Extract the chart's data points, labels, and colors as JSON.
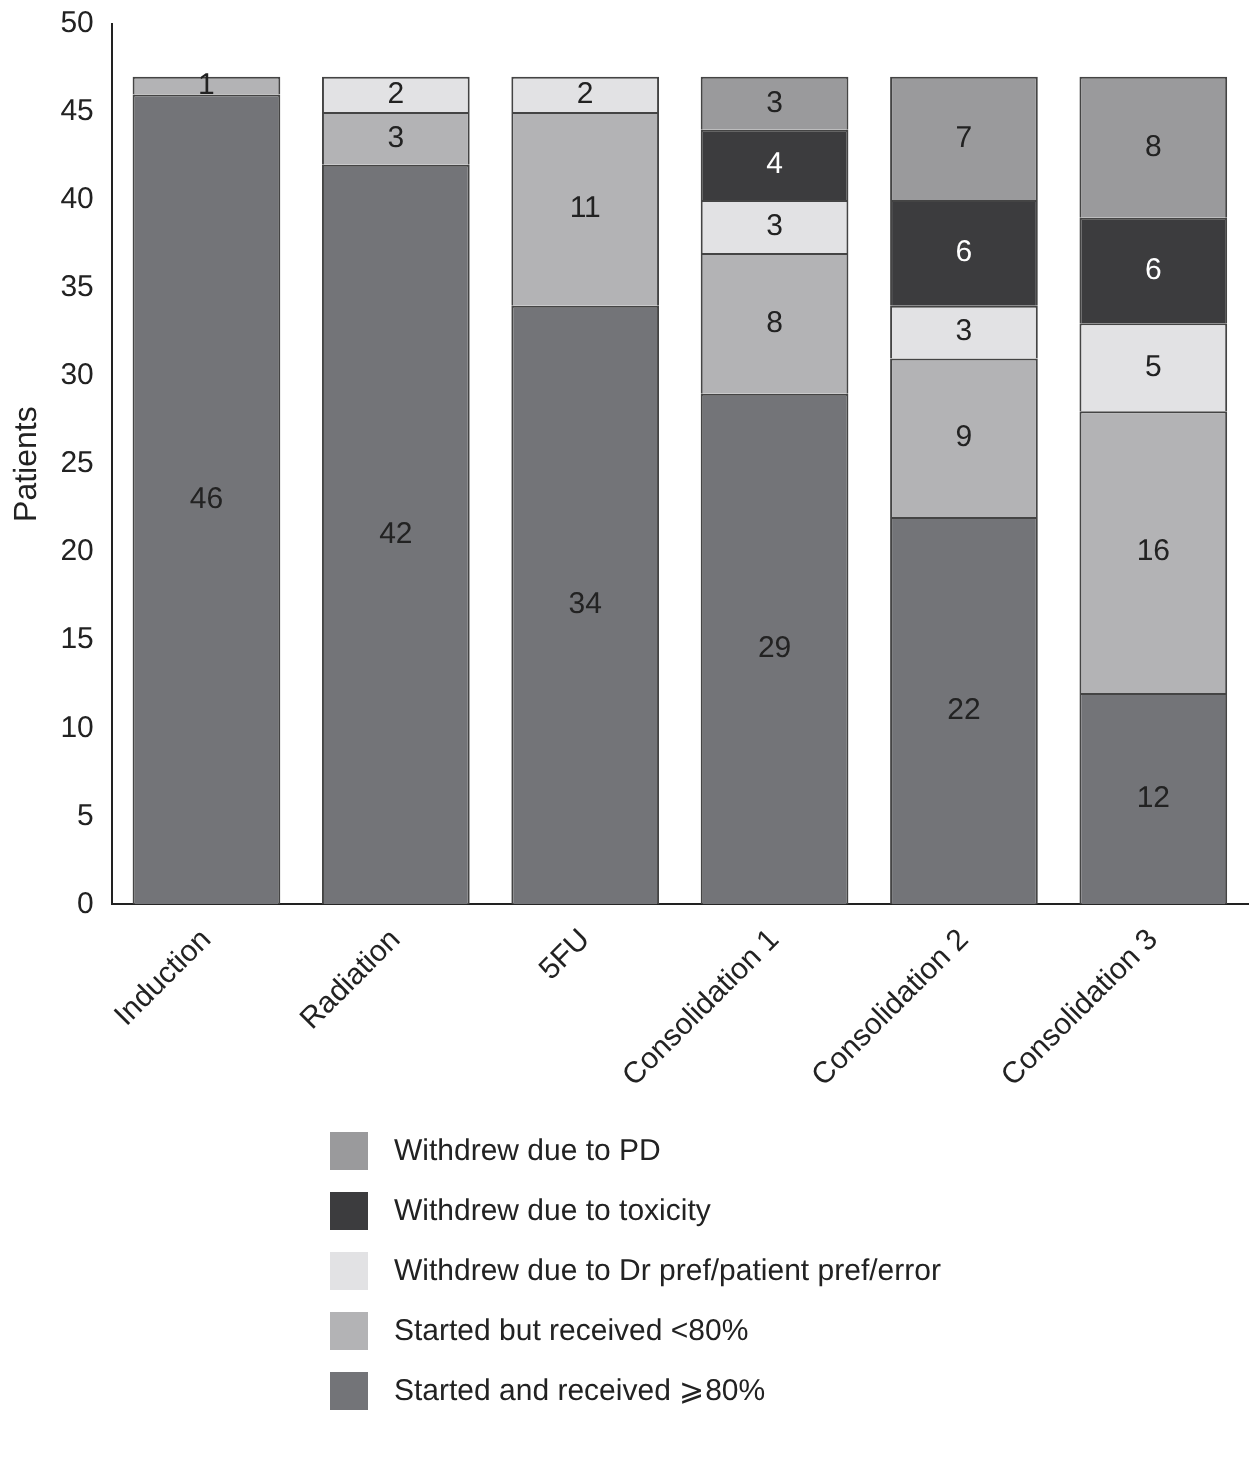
{
  "chart_data": {
    "type": "bar",
    "stacked": true,
    "ylabel": "Patients",
    "categories": [
      "Induction",
      "Radiation",
      "5FU",
      "Consolidation 1",
      "Consolidation 2",
      "Consolidation 3"
    ],
    "series": [
      {
        "name": "Started and received ⩾80%",
        "color": "#737478",
        "values": [
          46,
          42,
          34,
          29,
          22,
          12
        ]
      },
      {
        "name": "Started but received <80%",
        "color": "#b3b3b5",
        "values": [
          1,
          3,
          11,
          8,
          9,
          16
        ]
      },
      {
        "name": "Withdrew due to Dr pref/patient pref/error",
        "color": "#e2e2e4",
        "values": [
          null,
          2,
          2,
          3,
          3,
          5
        ]
      },
      {
        "name": "Withdrew due to toxicity",
        "color": "#3c3c3e",
        "values": [
          null,
          null,
          null,
          4,
          6,
          6
        ]
      },
      {
        "name": "Withdrew due to PD",
        "color": "#9a9a9c",
        "values": [
          null,
          null,
          null,
          3,
          7,
          8
        ]
      }
    ],
    "ylim": [
      0,
      50
    ],
    "yticks": [
      0,
      5,
      10,
      15,
      20,
      25,
      30,
      35,
      40,
      45,
      50
    ],
    "grid": false,
    "legend": "bottom",
    "data_labels": true
  }
}
